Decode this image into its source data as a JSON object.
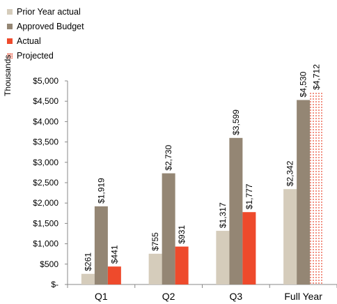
{
  "chart_data": {
    "type": "bar",
    "ylabel": "Thousands",
    "ylim": [
      0,
      5000
    ],
    "yticks": [
      0,
      500,
      1000,
      1500,
      2000,
      2500,
      3000,
      3500,
      4000,
      4500,
      5000
    ],
    "ytick_labels": [
      "$-",
      "$500",
      "$1,000",
      "$1,500",
      "$2,000",
      "$2,500",
      "$3,000",
      "$3,500",
      "$4,000",
      "$4,500",
      "$5,000"
    ],
    "categories": [
      "Q1",
      "Q2",
      "Q3",
      "Full Year"
    ],
    "legend_position": "top-left",
    "series": [
      {
        "name": "Prior Year actual",
        "color": "#d5ccbb",
        "style": "solid",
        "values": [
          261,
          755,
          1317,
          2342
        ],
        "labels": [
          "$261",
          "$755",
          "$1,317",
          "$2,342"
        ]
      },
      {
        "name": "Approved Budget",
        "color": "#948674",
        "style": "solid",
        "values": [
          1919,
          2730,
          3599,
          4530
        ],
        "labels": [
          "$1,919",
          "$2,730",
          "$3,599",
          "$4,530"
        ]
      },
      {
        "name": "Actual",
        "color": "#ee4a2c",
        "style": "solid",
        "values": [
          441,
          931,
          1777,
          null
        ],
        "labels": [
          "$441",
          "$931",
          "$1,777",
          ""
        ]
      },
      {
        "name": "Projected",
        "color": "#e8442a",
        "style": "dotted",
        "values": [
          null,
          null,
          null,
          4712
        ],
        "labels": [
          "",
          "",
          "",
          "$4,712"
        ]
      }
    ]
  }
}
